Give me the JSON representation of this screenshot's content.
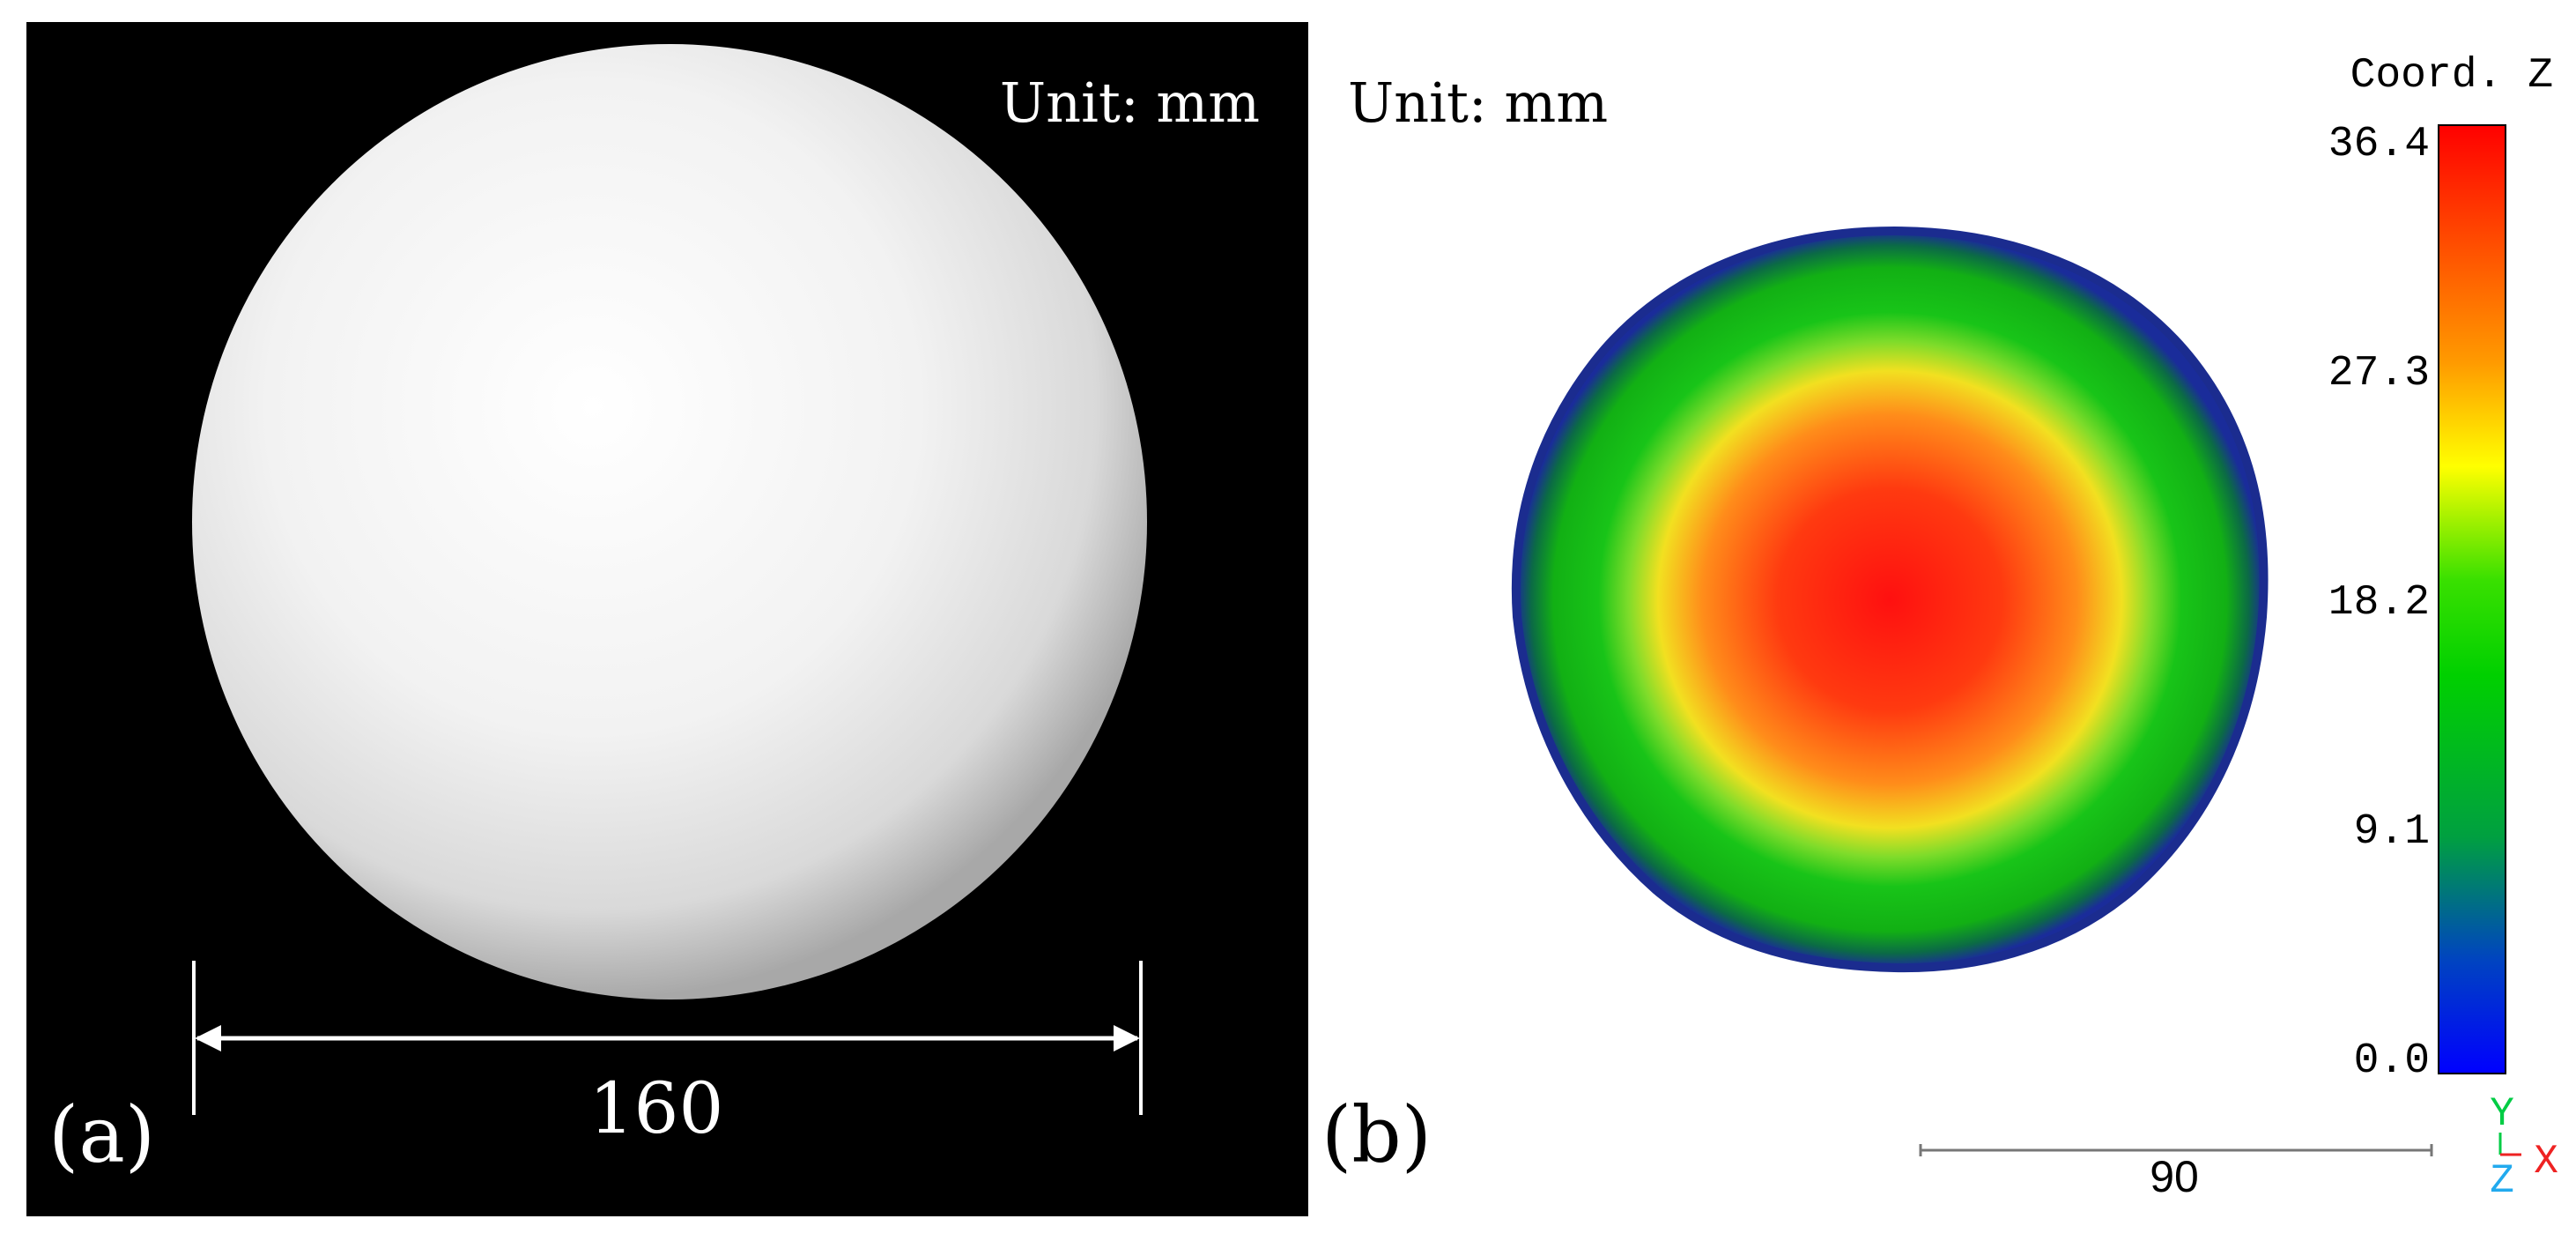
{
  "panel_a": {
    "label": "(a)",
    "unit_label": "Unit: mm",
    "dimension_label": "160",
    "background_color": "#000000",
    "sphere_color": "#f2f2f2"
  },
  "panel_b": {
    "label": "(b)",
    "unit_label": "Unit: mm",
    "colorbar": {
      "title": "Coord. Z",
      "ticks": [
        "36.4",
        "27.3",
        "18.2",
        "9.1",
        "0.0"
      ],
      "colors": [
        "#ff0000",
        "#ff8800",
        "#ffff00",
        "#00cc00",
        "#0000ff"
      ]
    },
    "scale_bar_label": "90",
    "axes": {
      "y_label": "Y",
      "z_label": "Z",
      "x_label": "X",
      "y_color": "#00cc44",
      "z_color": "#22aaee",
      "x_color": "#ee2222"
    }
  }
}
